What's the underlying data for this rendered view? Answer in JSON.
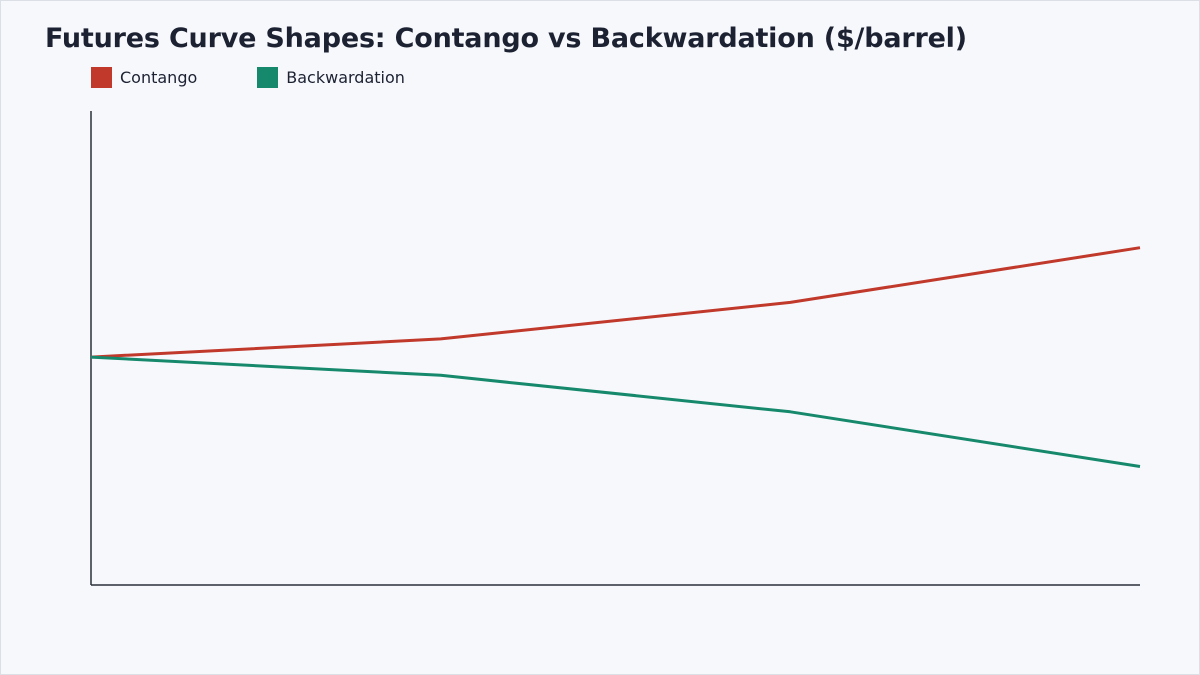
{
  "chart_data": {
    "type": "line",
    "title": "Futures Curve Shapes: Contango vs Backwardation ($/barrel)",
    "xlabel": "",
    "ylabel": "",
    "x": [
      0,
      1,
      2,
      3
    ],
    "series": [
      {
        "name": "Contango",
        "color": "#c0392b",
        "values": [
          80,
          81,
          83,
          86
        ]
      },
      {
        "name": "Backwardation",
        "color": "#16896c",
        "values": [
          80,
          79,
          77,
          74
        ]
      }
    ],
    "ylim": [
      67.5,
      93.5
    ],
    "xlim": [
      0,
      3
    ],
    "grid": false,
    "legend_position": "top-left"
  }
}
